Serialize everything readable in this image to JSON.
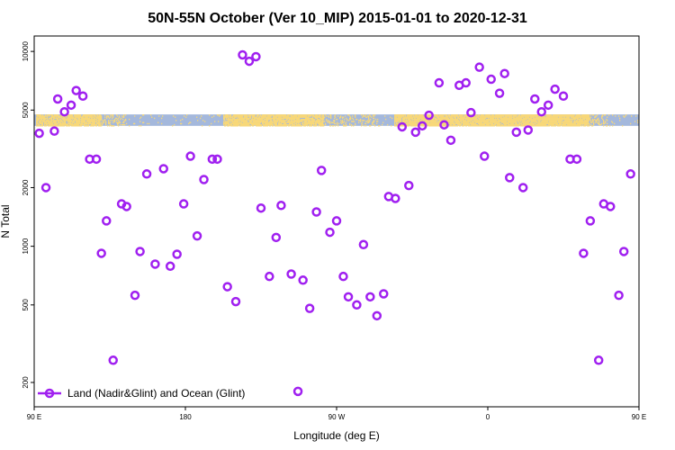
{
  "chart_data": {
    "type": "scatter",
    "title": "50N-55N October (Ver 10_MIP)   2015-01-01 to 2020-12-31",
    "xlabel": "Longitude (deg E)",
    "ylabel": "N Total",
    "y_scale": "log",
    "xlim": [
      90,
      450
    ],
    "ylim": [
      150,
      12000
    ],
    "x_ticks": [
      {
        "value": 90,
        "label": "90 E"
      },
      {
        "value": 180,
        "label": "180"
      },
      {
        "value": 270,
        "label": "90 W"
      },
      {
        "value": 360,
        "label": "0"
      },
      {
        "value": 450,
        "label": "90 E"
      },
      {
        "value": 540,
        "label": "180"
      }
    ],
    "y_ticks": [
      {
        "value": 200,
        "label": "200"
      },
      {
        "value": 500,
        "label": "500"
      },
      {
        "value": 1000,
        "label": "1000"
      },
      {
        "value": 2000,
        "label": "2000"
      },
      {
        "value": 5000,
        "label": "5000"
      },
      {
        "value": 10000,
        "label": "10000"
      }
    ],
    "colors": {
      "series": "#a020f0",
      "land_band": "#f8d878",
      "ocean_band": "#a4b8dc"
    },
    "band": {
      "y_low": 4150,
      "y_high": 4750
    },
    "series": [
      {
        "name": "Land (Nadir&Glint) and Ocean (Glint)",
        "points": [
          [
            93,
            3800
          ],
          [
            97,
            2000
          ],
          [
            102,
            3900
          ],
          [
            104,
            5700
          ],
          [
            108,
            4900
          ],
          [
            112,
            5300
          ],
          [
            115,
            6300
          ],
          [
            119,
            5900
          ],
          [
            123,
            2800
          ],
          [
            127,
            2800
          ],
          [
            130,
            920
          ],
          [
            133,
            1350
          ],
          [
            137,
            260
          ],
          [
            142,
            1650
          ],
          [
            145,
            1600
          ],
          [
            150,
            560
          ],
          [
            153,
            940
          ],
          [
            157,
            2350
          ],
          [
            162,
            810
          ],
          [
            167,
            2500
          ],
          [
            171,
            790
          ],
          [
            175,
            910
          ],
          [
            179,
            1650
          ],
          [
            183,
            2900
          ],
          [
            187,
            1130
          ],
          [
            191,
            2200
          ],
          [
            196,
            2800
          ],
          [
            199,
            2800
          ],
          [
            205,
            620
          ],
          [
            210,
            520
          ],
          [
            214,
            9600
          ],
          [
            218,
            8900
          ],
          [
            222,
            9400
          ],
          [
            225,
            1570
          ],
          [
            230,
            700
          ],
          [
            234,
            1110
          ],
          [
            237,
            1620
          ],
          [
            243,
            720
          ],
          [
            247,
            180
          ],
          [
            250,
            670
          ],
          [
            254,
            480
          ],
          [
            258,
            1500
          ],
          [
            261,
            2450
          ],
          [
            266,
            1180
          ],
          [
            270,
            1350
          ],
          [
            274,
            700
          ],
          [
            277,
            550
          ],
          [
            282,
            500
          ],
          [
            286,
            1020
          ],
          [
            290,
            550
          ],
          [
            294,
            440
          ],
          [
            298,
            570
          ],
          [
            301,
            1800
          ],
          [
            305,
            1760
          ],
          [
            309,
            4100
          ],
          [
            313,
            2050
          ],
          [
            317,
            3850
          ],
          [
            321,
            4150
          ],
          [
            325,
            4700
          ],
          [
            331,
            6900
          ],
          [
            334,
            4200
          ],
          [
            338,
            3500
          ],
          [
            343,
            6700
          ],
          [
            347,
            6900
          ],
          [
            350,
            4850
          ],
          [
            355,
            8300
          ],
          [
            358,
            2900
          ],
          [
            362,
            7200
          ],
          [
            367,
            6100
          ],
          [
            370,
            7700
          ],
          [
            373,
            2250
          ],
          [
            377,
            3850
          ],
          [
            381,
            2000
          ],
          [
            384,
            3950
          ],
          [
            388,
            5700
          ],
          [
            392,
            4900
          ],
          [
            396,
            5300
          ],
          [
            400,
            6400
          ],
          [
            405,
            5900
          ],
          [
            409,
            2800
          ],
          [
            413,
            2800
          ],
          [
            417,
            920
          ],
          [
            421,
            1350
          ],
          [
            426,
            260
          ],
          [
            429,
            1650
          ],
          [
            433,
            1600
          ],
          [
            438,
            560
          ],
          [
            441,
            940
          ],
          [
            445,
            2350
          ]
        ]
      }
    ],
    "legend_position": "bottom-left",
    "grid": false
  }
}
